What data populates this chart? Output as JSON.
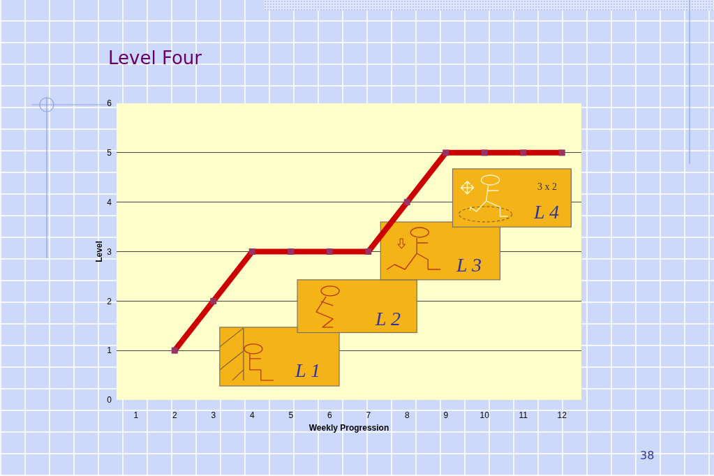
{
  "chart_data": {
    "type": "line",
    "title": "Level Four",
    "xlabel": "Weekly Progression",
    "ylabel": "Level",
    "x": [
      2,
      3,
      4,
      5,
      6,
      7,
      8,
      9,
      10,
      11,
      12
    ],
    "series": [
      {
        "type": "line",
        "color": "#cc0000",
        "marker": "none",
        "values": [
          1,
          2,
          3,
          3,
          3,
          3,
          4,
          5,
          5,
          5,
          5
        ]
      },
      {
        "type": "scatter",
        "color": "#993366",
        "marker": "square",
        "values": [
          1,
          2,
          3,
          3,
          3,
          3,
          4,
          5,
          5,
          5,
          5
        ]
      }
    ],
    "xlim": [
      0.5,
      12.5
    ],
    "xticks": [
      1,
      2,
      3,
      4,
      5,
      6,
      7,
      8,
      9,
      10,
      11,
      12
    ],
    "ylim": [
      0,
      6
    ],
    "yticks": [
      0,
      1,
      2,
      3,
      4,
      5,
      6
    ],
    "grid": "y",
    "annotations": [
      "L 1",
      "L 2",
      "L 3",
      "L 4",
      "3 x 2",
      "38"
    ]
  }
}
